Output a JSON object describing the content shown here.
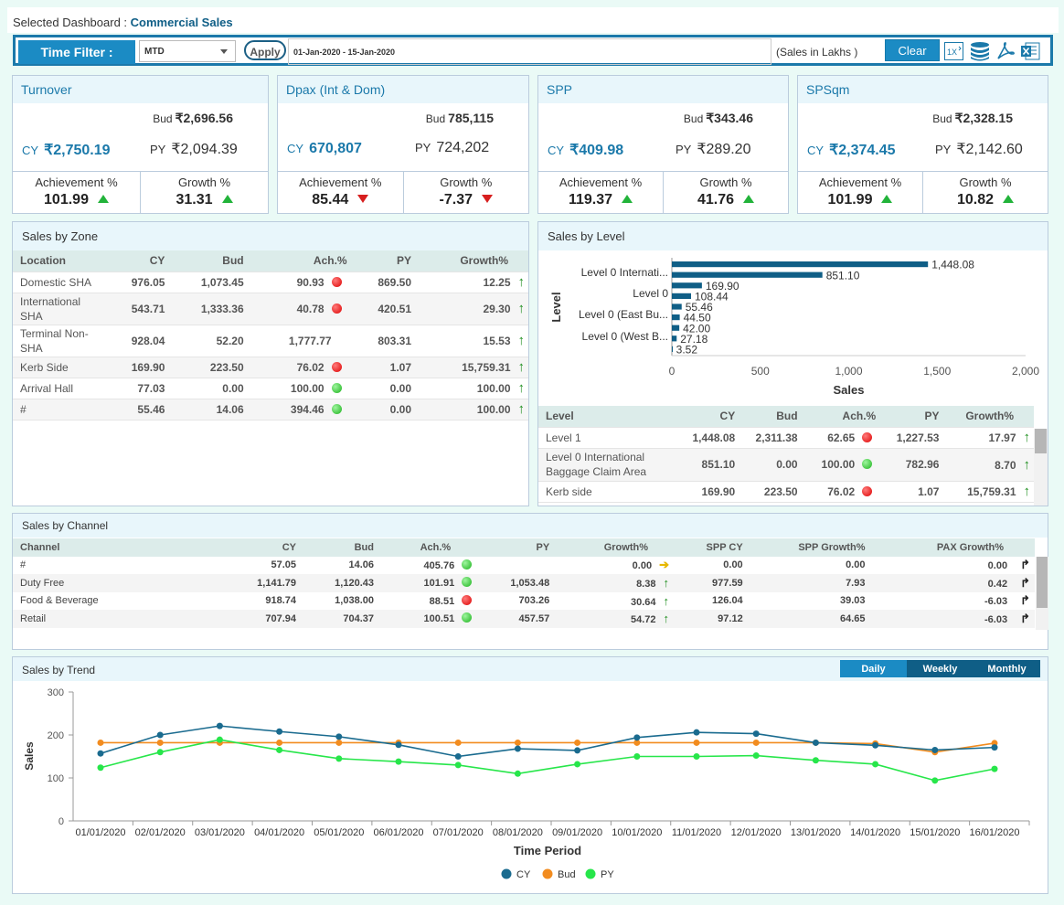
{
  "header": {
    "prefix": "Selected Dashboard : ",
    "dashboard": "Commercial Sales"
  },
  "filter": {
    "label": "Time Filter :",
    "period": "MTD",
    "apply": "Apply",
    "range": "01-Jan-2020 - 15-Jan-2020",
    "unit": "(Sales in Lakhs )",
    "clear": "Clear",
    "zoom_icon_text": "1X"
  },
  "kpis": [
    {
      "title": "Turnover",
      "bud_label": "Bud",
      "bud": "₹2,696.56",
      "cy_label": "CY",
      "cy": "₹2,750.19",
      "py_label": "PY",
      "py": "₹2,094.39",
      "ach_label": "Achievement %",
      "ach": "101.99",
      "ach_dir": "up",
      "growth_label": "Growth %",
      "growth": "31.31",
      "growth_dir": "up"
    },
    {
      "title": "Dpax (Int & Dom)",
      "bud_label": "Bud",
      "bud": "785,115",
      "cy_label": "CY",
      "cy": "670,807",
      "py_label": "PY",
      "py": "724,202",
      "ach_label": "Achievement %",
      "ach": "85.44",
      "ach_dir": "down",
      "growth_label": "Growth %",
      "growth": "-7.37",
      "growth_dir": "down"
    },
    {
      "title": "SPP",
      "bud_label": "Bud",
      "bud": "₹343.46",
      "cy_label": "CY",
      "cy": "₹409.98",
      "py_label": "PY",
      "py": "₹289.20",
      "ach_label": "Achievement %",
      "ach": "119.37",
      "ach_dir": "up",
      "growth_label": "Growth %",
      "growth": "41.76",
      "growth_dir": "up"
    },
    {
      "title": "SPSqm",
      "bud_label": "Bud",
      "bud": "₹2,328.15",
      "cy_label": "CY",
      "cy": "₹2,374.45",
      "py_label": "PY",
      "py": "₹2,142.60",
      "ach_label": "Achievement %",
      "ach": "101.99",
      "ach_dir": "up",
      "growth_label": "Growth %",
      "growth": "10.82",
      "growth_dir": "up"
    }
  ],
  "zone": {
    "title": "Sales by Zone",
    "headers": [
      "Location",
      "CY",
      "Bud",
      "Ach.%",
      "PY",
      "Growth%"
    ],
    "rows": [
      {
        "loc": "Domestic SHA",
        "cy": "976.05",
        "bud": "1,073.45",
        "ach": "90.93",
        "status": "red",
        "py": "869.50",
        "growth": "12.25"
      },
      {
        "loc": "International SHA",
        "cy": "543.71",
        "bud": "1,333.36",
        "ach": "40.78",
        "status": "red",
        "py": "420.51",
        "growth": "29.30"
      },
      {
        "loc": "Terminal Non-SHA",
        "cy": "928.04",
        "bud": "52.20",
        "ach": "1,777.77",
        "status": "none",
        "py": "803.31",
        "growth": "15.53"
      },
      {
        "loc": "Kerb Side",
        "cy": "169.90",
        "bud": "223.50",
        "ach": "76.02",
        "status": "red",
        "py": "1.07",
        "growth": "15,759.31"
      },
      {
        "loc": "Arrival Hall",
        "cy": "77.03",
        "bud": "0.00",
        "ach": "100.00",
        "status": "green",
        "py": "0.00",
        "growth": "100.00"
      },
      {
        "loc": "#",
        "cy": "55.46",
        "bud": "14.06",
        "ach": "394.46",
        "status": "green",
        "py": "0.00",
        "growth": "100.00"
      }
    ]
  },
  "level": {
    "title": "Sales by Level",
    "headers": [
      "Level",
      "CY",
      "Bud",
      "Ach.%",
      "PY",
      "Growth%"
    ],
    "rows": [
      {
        "level": "Level 1",
        "cy": "1,448.08",
        "bud": "2,311.38",
        "ach": "62.65",
        "status": "red",
        "py": "1,227.53",
        "growth": "17.97"
      },
      {
        "level": "Level 0 International Baggage Claim Area",
        "cy": "851.10",
        "bud": "0.00",
        "ach": "100.00",
        "status": "green",
        "py": "782.96",
        "growth": "8.70"
      },
      {
        "level": "Kerb side",
        "cy": "169.90",
        "bud": "223.50",
        "ach": "76.02",
        "status": "red",
        "py": "1.07",
        "growth": "15,759.31"
      }
    ]
  },
  "channel": {
    "title": "Sales by Channel",
    "headers": [
      "Channel",
      "CY",
      "Bud",
      "Ach.%",
      "PY",
      "Growth%",
      "SPP CY",
      "SPP Growth%",
      "PAX Growth%"
    ],
    "rows": [
      {
        "name": "#",
        "cy": "57.05",
        "bud": "14.06",
        "ach": "405.76",
        "status": "green",
        "py": "",
        "growth": "0.00",
        "trend": "flat",
        "spp": "0.00",
        "sppg": "0.00",
        "pax": "0.00"
      },
      {
        "name": "Duty Free",
        "cy": "1,141.79",
        "bud": "1,120.43",
        "ach": "101.91",
        "status": "green",
        "py": "1,053.48",
        "growth": "8.38",
        "trend": "up",
        "spp": "977.59",
        "sppg": "7.93",
        "pax": "0.42"
      },
      {
        "name": "Food & Beverage",
        "cy": "918.74",
        "bud": "1,038.00",
        "ach": "88.51",
        "status": "red",
        "py": "703.26",
        "growth": "30.64",
        "trend": "up",
        "spp": "126.04",
        "sppg": "39.03",
        "pax": "-6.03"
      },
      {
        "name": "Retail",
        "cy": "707.94",
        "bud": "704.37",
        "ach": "100.51",
        "status": "green",
        "py": "457.57",
        "growth": "54.72",
        "trend": "up",
        "spp": "97.12",
        "sppg": "64.65",
        "pax": "-6.03"
      }
    ]
  },
  "trend": {
    "title": "Sales by Trend",
    "tabs": [
      "Daily",
      "Weekly",
      "Monthly"
    ],
    "active_tab": "Daily"
  },
  "colors": {
    "accent": "#1b8bc4",
    "dark": "#0f5e86",
    "bar": "#0f5e86",
    "cy": "#1a6b8f",
    "bud": "#f28c1f",
    "py": "#27e64a"
  },
  "chart_data": [
    {
      "type": "bar",
      "orientation": "horizontal",
      "ylabel": "Level",
      "xlabel": "Sales",
      "y_tick_labels": [
        "Level 0 Internati...",
        "Level 0",
        "Level 0 (East Bu...",
        "Level 0 (West B..."
      ],
      "values": [
        1448.08,
        851.1,
        169.9,
        108.44,
        55.46,
        44.5,
        42.0,
        27.18,
        3.52
      ],
      "value_labels": [
        "1,448.08",
        "851.10",
        "169.90",
        "108.44",
        "55.46",
        "44.50",
        "42.00",
        "27.18",
        "3.52"
      ],
      "xlim": [
        0,
        2000
      ],
      "x_ticks": [
        "0",
        "500",
        "1,000",
        "1,500",
        "2,000"
      ]
    },
    {
      "type": "line",
      "xlabel": "Time Period",
      "ylabel": "Sales",
      "ylim": [
        0,
        300
      ],
      "y_ticks": [
        "0",
        "100",
        "200",
        "300"
      ],
      "x": [
        "01/01/2020",
        "02/01/2020",
        "03/01/2020",
        "04/01/2020",
        "05/01/2020",
        "06/01/2020",
        "07/01/2020",
        "08/01/2020",
        "09/01/2020",
        "10/01/2020",
        "11/01/2020",
        "12/01/2020",
        "13/01/2020",
        "14/01/2020",
        "15/01/2020",
        "16/01/2020"
      ],
      "series": [
        {
          "name": "CY",
          "values": [
            157,
            200,
            221,
            208,
            196,
            177,
            150,
            168,
            164,
            194,
            206,
            203,
            182,
            176,
            165,
            171
          ]
        },
        {
          "name": "Bud",
          "values": [
            182,
            182,
            182,
            182,
            182,
            182,
            182,
            182,
            182,
            182,
            182,
            182,
            182,
            180,
            160,
            181
          ]
        },
        {
          "name": "PY",
          "values": [
            124,
            160,
            189,
            165,
            145,
            138,
            130,
            110,
            132,
            150,
            150,
            152,
            141,
            132,
            94,
            121
          ]
        }
      ],
      "legend": "bottom",
      "grid": false
    }
  ]
}
